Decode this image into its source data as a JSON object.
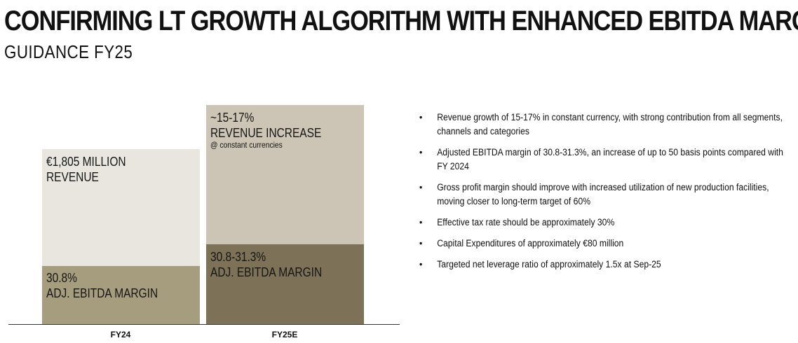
{
  "header": {
    "title": "CONFIRMING LT GROWTH ALGORITHM WITH ENHANCED EBITDA MARGIN",
    "subtitle": "GUIDANCE FY25"
  },
  "chart_data": {
    "type": "bar",
    "stacked": true,
    "categories": [
      "FY24",
      "FY25E"
    ],
    "colors": {
      "fy24_top": "#e8e6df",
      "fy24_bottom": "#a69c7e",
      "fy25_top": "#ccc5b5",
      "fy25_bottom": "#7d7158"
    },
    "bars": [
      {
        "category": "FY24",
        "segments": [
          {
            "role": "margin",
            "lines": [
              "30.8%",
              "ADJ. EBITDA MARGIN"
            ]
          },
          {
            "role": "total",
            "lines": [
              "€1,805 MILLION",
              "REVENUE"
            ],
            "note": ""
          }
        ]
      },
      {
        "category": "FY25E",
        "segments": [
          {
            "role": "margin",
            "lines": [
              "30.8-31.3%",
              "ADJ. EBITDA MARGIN"
            ]
          },
          {
            "role": "total",
            "lines": [
              "~15-17%",
              "REVENUE INCREASE"
            ],
            "note": "@ constant currencies"
          }
        ]
      }
    ]
  },
  "bullets": [
    "Revenue growth of 15-17% in constant currency, with strong contribution from all segments, channels and categories",
    "Adjusted EBITDA margin of 30.8-31.3%, an increase of up to 50 basis points compared with FY 2024",
    "Gross profit margin should improve with increased utilization of new production facilities, moving closer to long-term target of 60%",
    "Effective tax rate should be approximately 30%",
    "Capital Expenditures of approximately €80 million",
    "Targeted net leverage ratio of approximately 1.5x at Sep-25"
  ],
  "bullet_symbol": "•"
}
